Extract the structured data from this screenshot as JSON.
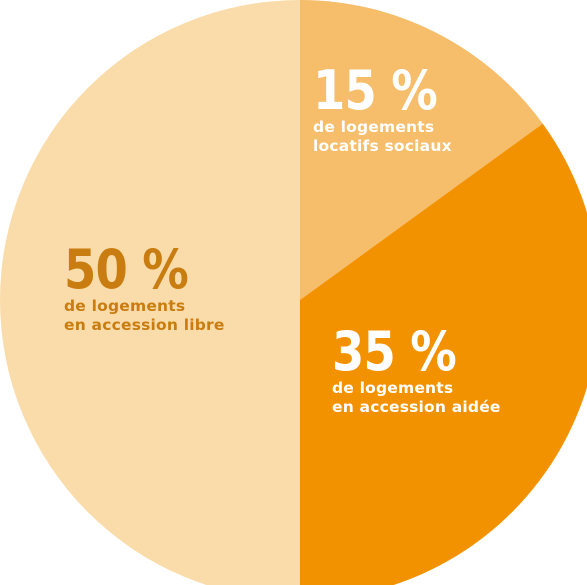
{
  "chart_data": {
    "type": "pie",
    "slices": [
      {
        "value": 15,
        "percent_label": "15 %",
        "line1": "de logements",
        "line2": "locatifs sociaux",
        "color": "#f6bd6a",
        "text_color": "#ffffff"
      },
      {
        "value": 35,
        "percent_label": "35 %",
        "line1": "de logements",
        "line2": "en accession aidée",
        "color": "#f39200",
        "text_color": "#ffffff"
      },
      {
        "value": 50,
        "percent_label": "50 %",
        "line1": "de logements",
        "line2": "en accession libre",
        "color": "#fadcaa",
        "text_color": "#c97d10"
      }
    ],
    "start_angle_deg": 0,
    "direction": "clockwise"
  }
}
